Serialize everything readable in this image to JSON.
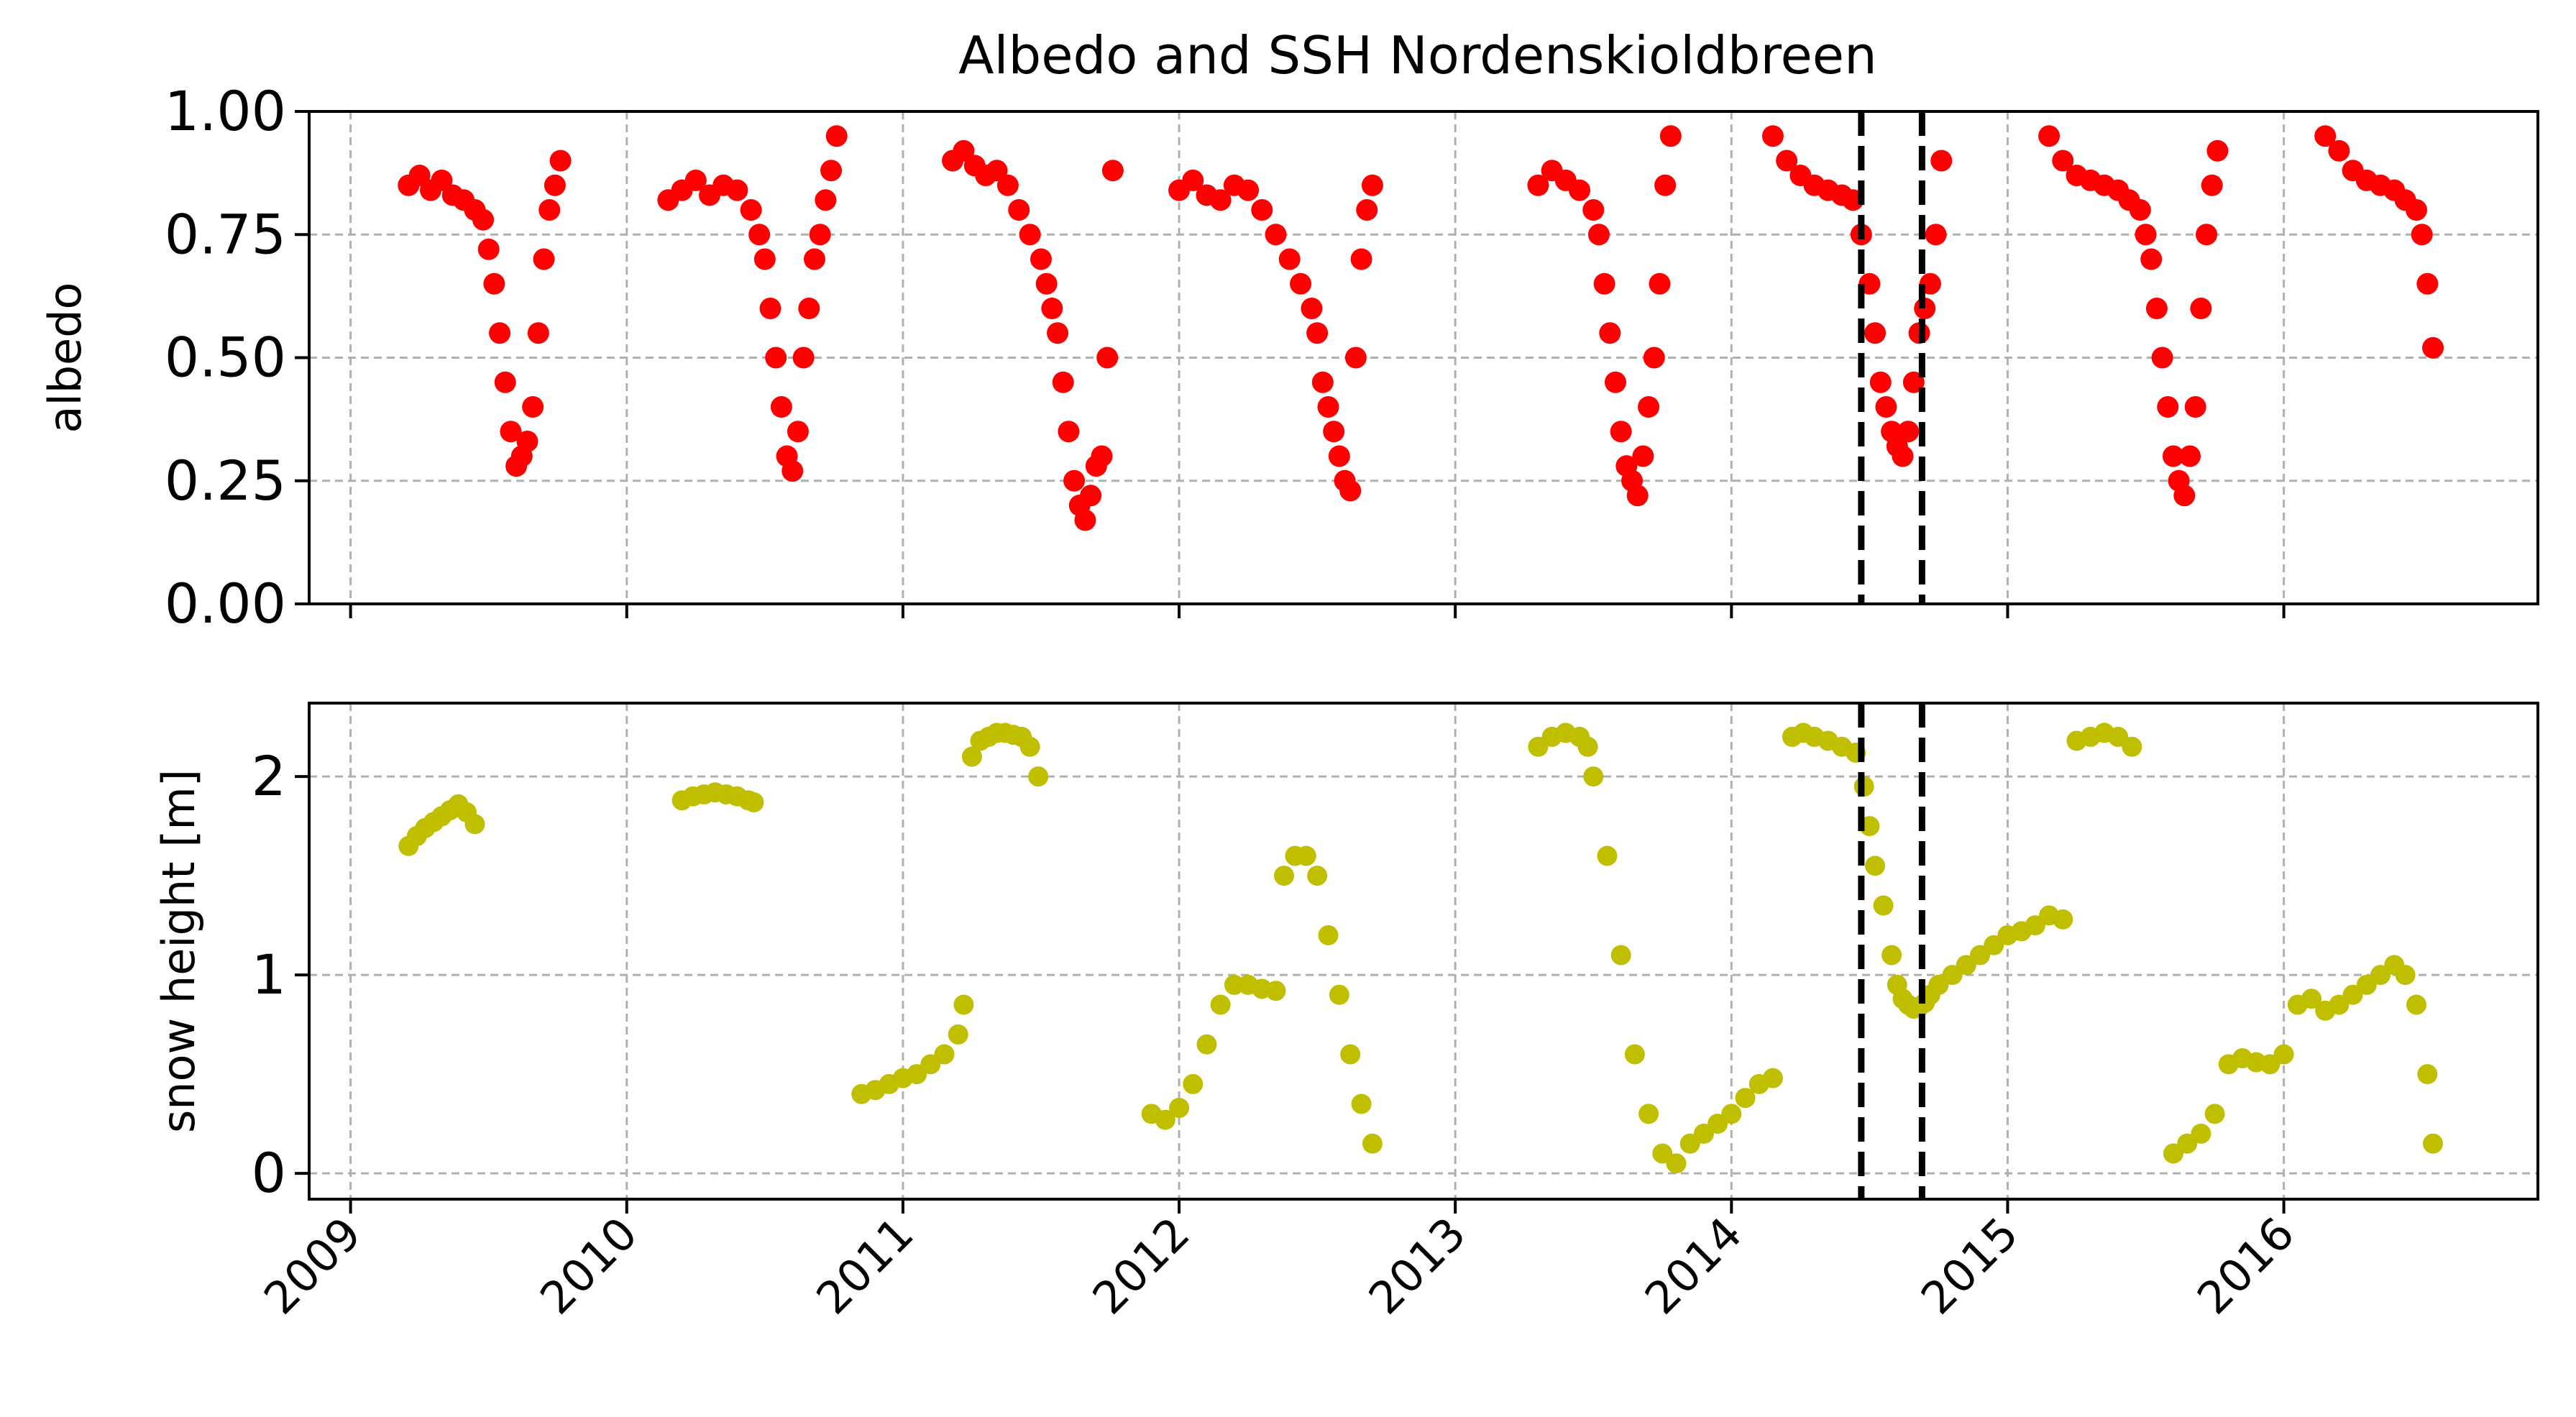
{
  "chart_data": [
    {
      "type": "scatter",
      "title": "Albedo and SSH Nordenskioldbreen",
      "xlabel": "",
      "ylabel": "albedo",
      "xlim": [
        2008.85,
        2016.92
      ],
      "ylim": [
        0,
        1
      ],
      "y_ticks": [
        "0.00",
        "0.25",
        "0.50",
        "0.75",
        "1.00"
      ],
      "y_tick_values": [
        0,
        0.25,
        0.5,
        0.75,
        1.0
      ],
      "x_ticks": [
        "2009",
        "2010",
        "2011",
        "2012",
        "2013",
        "2014",
        "2015",
        "2016"
      ],
      "x_tick_values": [
        2009,
        2010,
        2011,
        2012,
        2013,
        2014,
        2015,
        2016
      ],
      "grid": true,
      "marker_color": "#ff0000",
      "vlines": [
        2014.47,
        2014.69
      ],
      "vline_color": "#000000",
      "series": [
        {
          "x": [
            2009.21,
            2009.25,
            2009.29,
            2009.33,
            2009.37,
            2009.41,
            2009.45,
            2009.48,
            2009.5,
            2009.52,
            2009.54,
            2009.56,
            2009.58,
            2009.6,
            2009.62,
            2009.64,
            2009.66,
            2009.68,
            2009.7,
            2009.72,
            2009.74,
            2009.76,
            2010.15,
            2010.2,
            2010.25,
            2010.3,
            2010.35,
            2010.4,
            2010.45,
            2010.48,
            2010.5,
            2010.52,
            2010.54,
            2010.56,
            2010.58,
            2010.6,
            2010.62,
            2010.64,
            2010.66,
            2010.68,
            2010.7,
            2010.72,
            2010.74,
            2010.76,
            2011.18,
            2011.22,
            2011.26,
            2011.3,
            2011.34,
            2011.38,
            2011.42,
            2011.46,
            2011.5,
            2011.52,
            2011.54,
            2011.56,
            2011.58,
            2011.6,
            2011.62,
            2011.64,
            2011.66,
            2011.68,
            2011.7,
            2011.72,
            2011.74,
            2011.76,
            2012.0,
            2012.05,
            2012.1,
            2012.15,
            2012.2,
            2012.25,
            2012.3,
            2012.35,
            2012.4,
            2012.44,
            2012.48,
            2012.5,
            2012.52,
            2012.54,
            2012.56,
            2012.58,
            2012.6,
            2012.62,
            2012.64,
            2012.66,
            2012.68,
            2012.7,
            2013.3,
            2013.35,
            2013.4,
            2013.45,
            2013.5,
            2013.52,
            2013.54,
            2013.56,
            2013.58,
            2013.6,
            2013.62,
            2013.64,
            2013.66,
            2013.68,
            2013.7,
            2013.72,
            2013.74,
            2013.76,
            2013.78,
            2014.15,
            2014.2,
            2014.25,
            2014.3,
            2014.35,
            2014.4,
            2014.44,
            2014.47,
            2014.5,
            2014.52,
            2014.54,
            2014.56,
            2014.58,
            2014.6,
            2014.62,
            2014.64,
            2014.66,
            2014.68,
            2014.7,
            2014.72,
            2014.74,
            2014.76,
            2015.15,
            2015.2,
            2015.25,
            2015.3,
            2015.35,
            2015.4,
            2015.44,
            2015.48,
            2015.5,
            2015.52,
            2015.54,
            2015.56,
            2015.58,
            2015.6,
            2015.62,
            2015.64,
            2015.66,
            2015.68,
            2015.7,
            2015.72,
            2015.74,
            2015.76,
            2016.15,
            2016.2,
            2016.25,
            2016.3,
            2016.35,
            2016.4,
            2016.44,
            2016.48,
            2016.5,
            2016.52,
            2016.54
          ],
          "y": [
            0.85,
            0.87,
            0.84,
            0.86,
            0.83,
            0.82,
            0.8,
            0.78,
            0.72,
            0.65,
            0.55,
            0.45,
            0.35,
            0.28,
            0.3,
            0.33,
            0.4,
            0.55,
            0.7,
            0.8,
            0.85,
            0.9,
            0.82,
            0.84,
            0.86,
            0.83,
            0.85,
            0.84,
            0.8,
            0.75,
            0.7,
            0.6,
            0.5,
            0.4,
            0.3,
            0.27,
            0.35,
            0.5,
            0.6,
            0.7,
            0.75,
            0.82,
            0.88,
            0.95,
            0.9,
            0.92,
            0.89,
            0.87,
            0.88,
            0.85,
            0.8,
            0.75,
            0.7,
            0.65,
            0.6,
            0.55,
            0.45,
            0.35,
            0.25,
            0.2,
            0.17,
            0.22,
            0.28,
            0.3,
            0.5,
            0.88,
            0.84,
            0.86,
            0.83,
            0.82,
            0.85,
            0.84,
            0.8,
            0.75,
            0.7,
            0.65,
            0.6,
            0.55,
            0.45,
            0.4,
            0.35,
            0.3,
            0.25,
            0.23,
            0.5,
            0.7,
            0.8,
            0.85,
            0.85,
            0.88,
            0.86,
            0.84,
            0.8,
            0.75,
            0.65,
            0.55,
            0.45,
            0.35,
            0.28,
            0.25,
            0.22,
            0.3,
            0.4,
            0.5,
            0.65,
            0.85,
            0.95,
            0.95,
            0.9,
            0.87,
            0.85,
            0.84,
            0.83,
            0.82,
            0.75,
            0.65,
            0.55,
            0.45,
            0.4,
            0.35,
            0.32,
            0.3,
            0.35,
            0.45,
            0.55,
            0.6,
            0.65,
            0.75,
            0.9,
            0.95,
            0.9,
            0.87,
            0.86,
            0.85,
            0.84,
            0.82,
            0.8,
            0.75,
            0.7,
            0.6,
            0.5,
            0.4,
            0.3,
            0.25,
            0.22,
            0.3,
            0.4,
            0.6,
            0.75,
            0.85,
            0.92,
            0.95,
            0.92,
            0.88,
            0.86,
            0.85,
            0.84,
            0.82,
            0.8,
            0.75,
            0.65,
            0.52
          ]
        }
      ]
    },
    {
      "type": "scatter",
      "title": "",
      "xlabel": "",
      "ylabel": "snow height [m]",
      "xlim": [
        2008.85,
        2016.92
      ],
      "ylim": [
        -0.13,
        2.37
      ],
      "y_ticks": [
        "0",
        "1",
        "2"
      ],
      "y_tick_values": [
        0,
        1,
        2
      ],
      "x_ticks": [
        "2009",
        "2010",
        "2011",
        "2012",
        "2013",
        "2014",
        "2015",
        "2016"
      ],
      "x_tick_values": [
        2009,
        2010,
        2011,
        2012,
        2013,
        2014,
        2015,
        2016
      ],
      "grid": true,
      "marker_color": "#bfbf00",
      "vlines": [
        2014.47,
        2014.69
      ],
      "vline_color": "#000000",
      "series": [
        {
          "x": [
            2009.21,
            2009.24,
            2009.27,
            2009.3,
            2009.33,
            2009.36,
            2009.39,
            2009.42,
            2009.45,
            2010.2,
            2010.24,
            2010.28,
            2010.32,
            2010.36,
            2010.4,
            2010.44,
            2010.46,
            2010.85,
            2010.9,
            2010.95,
            2011.0,
            2011.05,
            2011.1,
            2011.15,
            2011.2,
            2011.22,
            2011.25,
            2011.28,
            2011.31,
            2011.34,
            2011.37,
            2011.4,
            2011.43,
            2011.46,
            2011.49,
            2011.9,
            2011.95,
            2012.0,
            2012.05,
            2012.1,
            2012.15,
            2012.2,
            2012.25,
            2012.3,
            2012.35,
            2012.38,
            2012.42,
            2012.46,
            2012.5,
            2012.54,
            2012.58,
            2012.62,
            2012.66,
            2012.7,
            2013.3,
            2013.35,
            2013.4,
            2013.45,
            2013.48,
            2013.5,
            2013.55,
            2013.6,
            2013.65,
            2013.7,
            2013.75,
            2013.8,
            2013.85,
            2013.9,
            2013.95,
            2014.0,
            2014.05,
            2014.1,
            2014.15,
            2014.22,
            2014.26,
            2014.3,
            2014.35,
            2014.4,
            2014.45,
            2014.48,
            2014.5,
            2014.52,
            2014.55,
            2014.58,
            2014.6,
            2014.62,
            2014.64,
            2014.66,
            2014.68,
            2014.7,
            2014.72,
            2014.75,
            2014.8,
            2014.85,
            2014.9,
            2014.95,
            2015.0,
            2015.05,
            2015.1,
            2015.15,
            2015.2,
            2015.25,
            2015.3,
            2015.35,
            2015.4,
            2015.45,
            2015.6,
            2015.65,
            2015.7,
            2015.75,
            2015.8,
            2015.85,
            2015.9,
            2015.95,
            2016.0,
            2016.05,
            2016.1,
            2016.15,
            2016.2,
            2016.25,
            2016.3,
            2016.35,
            2016.4,
            2016.44,
            2016.48,
            2016.52,
            2016.54
          ],
          "y": [
            1.65,
            1.7,
            1.74,
            1.77,
            1.8,
            1.83,
            1.86,
            1.82,
            1.76,
            1.88,
            1.9,
            1.91,
            1.92,
            1.91,
            1.9,
            1.88,
            1.87,
            0.4,
            0.42,
            0.45,
            0.48,
            0.5,
            0.55,
            0.6,
            0.7,
            0.85,
            2.1,
            2.18,
            2.2,
            2.22,
            2.22,
            2.21,
            2.2,
            2.15,
            2.0,
            0.3,
            0.27,
            0.33,
            0.45,
            0.65,
            0.85,
            0.95,
            0.95,
            0.93,
            0.92,
            1.5,
            1.6,
            1.6,
            1.5,
            1.2,
            0.9,
            0.6,
            0.35,
            0.15,
            2.15,
            2.2,
            2.22,
            2.2,
            2.15,
            2.0,
            1.6,
            1.1,
            0.6,
            0.3,
            0.1,
            0.05,
            0.15,
            0.2,
            0.25,
            0.3,
            0.38,
            0.45,
            0.48,
            2.2,
            2.22,
            2.2,
            2.18,
            2.15,
            2.12,
            1.95,
            1.75,
            1.55,
            1.35,
            1.1,
            0.95,
            0.88,
            0.85,
            0.83,
            0.84,
            0.86,
            0.9,
            0.95,
            1.0,
            1.05,
            1.1,
            1.15,
            1.2,
            1.22,
            1.25,
            1.3,
            1.28,
            2.18,
            2.2,
            2.22,
            2.2,
            2.15,
            0.1,
            0.15,
            0.2,
            0.3,
            0.55,
            0.58,
            0.56,
            0.55,
            0.6,
            0.85,
            0.88,
            0.82,
            0.85,
            0.9,
            0.95,
            1.0,
            1.05,
            1.0,
            0.85,
            0.5,
            0.15
          ]
        }
      ]
    }
  ]
}
